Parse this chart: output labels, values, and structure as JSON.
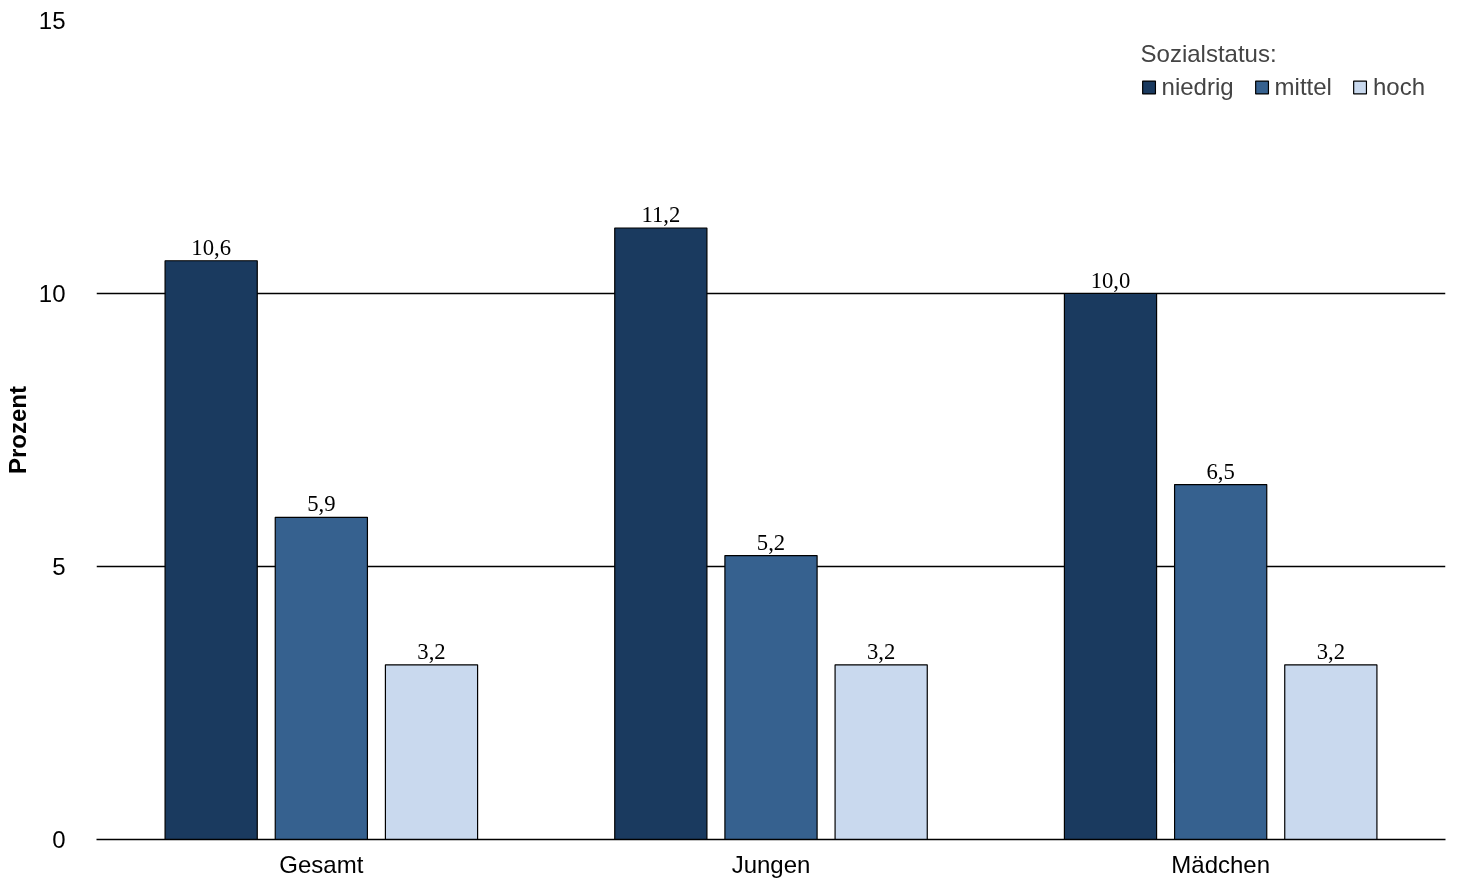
{
  "chart_data": {
    "type": "bar",
    "ylabel": "Prozent",
    "legend_title": "Sozialstatus:",
    "categories": [
      "Gesamt",
      "Jungen",
      "Mädchen"
    ],
    "series": [
      {
        "name": "niedrig",
        "color": "#1a3a5f",
        "values": [
          10.6,
          11.2,
          10.0
        ],
        "value_labels": [
          "10,6",
          "11,2",
          "10,0"
        ]
      },
      {
        "name": "mittel",
        "color": "#36618f",
        "values": [
          5.9,
          5.2,
          6.5
        ],
        "value_labels": [
          "5,9",
          "5,2",
          "6,5"
        ]
      },
      {
        "name": "hoch",
        "color": "#c9d9ee",
        "values": [
          3.2,
          3.2,
          3.2
        ],
        "value_labels": [
          "3,2",
          "3,2",
          "3,2"
        ]
      }
    ],
    "ylim": [
      0,
      15
    ],
    "yticks": [
      0,
      5,
      10,
      15
    ],
    "grid": "y",
    "legend": "top right"
  }
}
